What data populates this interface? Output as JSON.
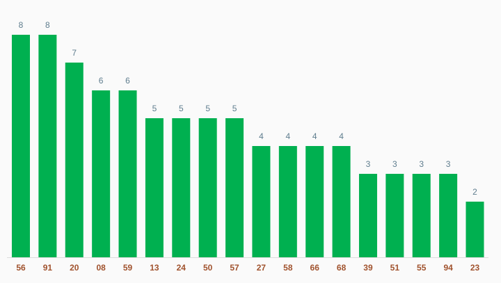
{
  "chart_data": {
    "type": "bar",
    "categories": [
      "56",
      "91",
      "20",
      "08",
      "59",
      "13",
      "24",
      "50",
      "57",
      "27",
      "58",
      "66",
      "68",
      "39",
      "51",
      "55",
      "94",
      "23"
    ],
    "values": [
      8,
      8,
      7,
      6,
      6,
      5,
      5,
      5,
      5,
      4,
      4,
      4,
      4,
      3,
      3,
      3,
      3,
      2
    ],
    "color": "#00b050"
  }
}
